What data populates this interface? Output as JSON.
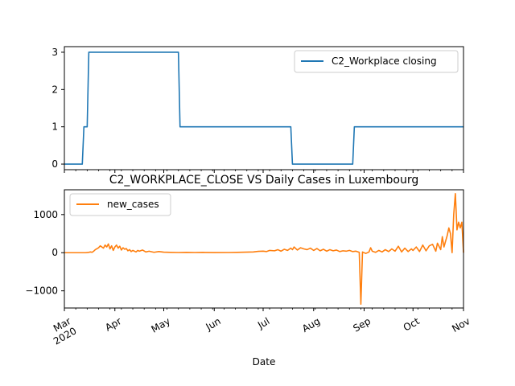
{
  "colors": {
    "series_1": "#1f77b4",
    "series_2": "#ff7f0e",
    "axes": "#000000",
    "legend_border": "#cccccc"
  },
  "chart_data": [
    {
      "type": "line",
      "title": "",
      "xlabel": "",
      "ylabel": "",
      "ylim": [
        -0.15,
        3.15
      ],
      "xlim": [
        "2020-03-01",
        "2020-11-01"
      ],
      "yticks": [
        "0",
        "1",
        "2",
        "3"
      ],
      "grid": false,
      "legend": "upper right",
      "series": [
        {
          "name": "C2_Workplace closing",
          "color": "#1f77b4",
          "points": [
            [
              "2020-03-01",
              0
            ],
            [
              "2020-03-12",
              0
            ],
            [
              "2020-03-13",
              1
            ],
            [
              "2020-03-14",
              1
            ],
            [
              "2020-03-15",
              1
            ],
            [
              "2020-03-16",
              3
            ],
            [
              "2020-05-10",
              3
            ],
            [
              "2020-05-11",
              1
            ],
            [
              "2020-07-18",
              1
            ],
            [
              "2020-07-19",
              0
            ],
            [
              "2020-08-25",
              0
            ],
            [
              "2020-08-26",
              1
            ],
            [
              "2020-11-01",
              1
            ]
          ]
        }
      ]
    },
    {
      "type": "line",
      "title": "C2_WORKPLACE_CLOSE VS Daily Cases in Luxembourg",
      "xlabel": "Date",
      "ylabel": "",
      "ylim": [
        -1450,
        1650
      ],
      "xlim": [
        "2020-03-01",
        "2020-11-01"
      ],
      "yticks": [
        "−1000",
        "0",
        "1000"
      ],
      "xticks": [
        {
          "date": "2020-03-01",
          "label": "Mar\n2020"
        },
        {
          "date": "2020-04-01",
          "label": "Apr"
        },
        {
          "date": "2020-05-01",
          "label": "May"
        },
        {
          "date": "2020-06-01",
          "label": "Jun"
        },
        {
          "date": "2020-07-01",
          "label": "Jul"
        },
        {
          "date": "2020-08-01",
          "label": "Aug"
        },
        {
          "date": "2020-09-01",
          "label": "Sep"
        },
        {
          "date": "2020-10-01",
          "label": "Oct"
        },
        {
          "date": "2020-11-01",
          "label": "Nov"
        }
      ],
      "grid": false,
      "legend": "upper left",
      "series": [
        {
          "name": "new_cases",
          "color": "#ff7f0e",
          "points": [
            [
              "2020-03-01",
              0
            ],
            [
              "2020-03-05",
              0
            ],
            [
              "2020-03-10",
              0
            ],
            [
              "2020-03-14",
              0
            ],
            [
              "2020-03-16",
              10
            ],
            [
              "2020-03-17",
              20
            ],
            [
              "2020-03-18",
              10
            ],
            [
              "2020-03-19",
              40
            ],
            [
              "2020-03-20",
              80
            ],
            [
              "2020-03-22",
              130
            ],
            [
              "2020-03-23",
              180
            ],
            [
              "2020-03-25",
              120
            ],
            [
              "2020-03-26",
              200
            ],
            [
              "2020-03-27",
              150
            ],
            [
              "2020-03-28",
              230
            ],
            [
              "2020-03-29",
              100
            ],
            [
              "2020-03-30",
              180
            ],
            [
              "2020-03-31",
              60
            ],
            [
              "2020-04-01",
              150
            ],
            [
              "2020-04-02",
              200
            ],
            [
              "2020-04-03",
              120
            ],
            [
              "2020-04-04",
              170
            ],
            [
              "2020-04-05",
              70
            ],
            [
              "2020-04-06",
              130
            ],
            [
              "2020-04-07",
              90
            ],
            [
              "2020-04-08",
              110
            ],
            [
              "2020-04-09",
              50
            ],
            [
              "2020-04-10",
              80
            ],
            [
              "2020-04-11",
              30
            ],
            [
              "2020-04-12",
              60
            ],
            [
              "2020-04-14",
              20
            ],
            [
              "2020-04-15",
              60
            ],
            [
              "2020-04-16",
              40
            ],
            [
              "2020-04-18",
              70
            ],
            [
              "2020-04-20",
              20
            ],
            [
              "2020-04-22",
              40
            ],
            [
              "2020-04-25",
              10
            ],
            [
              "2020-04-28",
              30
            ],
            [
              "2020-05-01",
              15
            ],
            [
              "2020-05-05",
              10
            ],
            [
              "2020-05-10",
              5
            ],
            [
              "2020-05-15",
              10
            ],
            [
              "2020-05-20",
              5
            ],
            [
              "2020-05-25",
              8
            ],
            [
              "2020-06-01",
              3
            ],
            [
              "2020-06-10",
              5
            ],
            [
              "2020-06-15",
              10
            ],
            [
              "2020-06-20",
              15
            ],
            [
              "2020-06-25",
              20
            ],
            [
              "2020-06-28",
              35
            ],
            [
              "2020-07-01",
              40
            ],
            [
              "2020-07-03",
              30
            ],
            [
              "2020-07-05",
              60
            ],
            [
              "2020-07-08",
              50
            ],
            [
              "2020-07-10",
              80
            ],
            [
              "2020-07-12",
              40
            ],
            [
              "2020-07-14",
              90
            ],
            [
              "2020-07-16",
              60
            ],
            [
              "2020-07-18",
              120
            ],
            [
              "2020-07-19",
              80
            ],
            [
              "2020-07-20",
              150
            ],
            [
              "2020-07-22",
              70
            ],
            [
              "2020-07-24",
              130
            ],
            [
              "2020-07-26",
              100
            ],
            [
              "2020-07-28",
              80
            ],
            [
              "2020-07-30",
              120
            ],
            [
              "2020-08-01",
              60
            ],
            [
              "2020-08-03",
              110
            ],
            [
              "2020-08-05",
              50
            ],
            [
              "2020-08-07",
              90
            ],
            [
              "2020-08-09",
              40
            ],
            [
              "2020-08-11",
              80
            ],
            [
              "2020-08-13",
              50
            ],
            [
              "2020-08-15",
              70
            ],
            [
              "2020-08-17",
              30
            ],
            [
              "2020-08-19",
              50
            ],
            [
              "2020-08-21",
              40
            ],
            [
              "2020-08-23",
              60
            ],
            [
              "2020-08-25",
              30
            ],
            [
              "2020-08-27",
              40
            ],
            [
              "2020-08-29",
              10
            ],
            [
              "2020-08-30",
              -1350
            ],
            [
              "2020-08-31",
              20
            ],
            [
              "2020-09-02",
              -20
            ],
            [
              "2020-09-04",
              20
            ],
            [
              "2020-09-05",
              130
            ],
            [
              "2020-09-06",
              40
            ],
            [
              "2020-09-08",
              10
            ],
            [
              "2020-09-10",
              60
            ],
            [
              "2020-09-12",
              20
            ],
            [
              "2020-09-14",
              80
            ],
            [
              "2020-09-16",
              30
            ],
            [
              "2020-09-18",
              100
            ],
            [
              "2020-09-20",
              40
            ],
            [
              "2020-09-22",
              170
            ],
            [
              "2020-09-24",
              20
            ],
            [
              "2020-09-26",
              120
            ],
            [
              "2020-09-28",
              30
            ],
            [
              "2020-09-30",
              100
            ],
            [
              "2020-10-01",
              60
            ],
            [
              "2020-10-03",
              150
            ],
            [
              "2020-10-05",
              30
            ],
            [
              "2020-10-07",
              200
            ],
            [
              "2020-10-09",
              50
            ],
            [
              "2020-10-11",
              180
            ],
            [
              "2020-10-13",
              220
            ],
            [
              "2020-10-15",
              40
            ],
            [
              "2020-10-16",
              250
            ],
            [
              "2020-10-18",
              80
            ],
            [
              "2020-10-19",
              420
            ],
            [
              "2020-10-20",
              150
            ],
            [
              "2020-10-21",
              300
            ],
            [
              "2020-10-22",
              450
            ],
            [
              "2020-10-23",
              650
            ],
            [
              "2020-10-24",
              500
            ],
            [
              "2020-10-25",
              0
            ],
            [
              "2020-10-26",
              1000
            ],
            [
              "2020-10-27",
              1550
            ],
            [
              "2020-10-28",
              600
            ],
            [
              "2020-10-29",
              800
            ],
            [
              "2020-10-30",
              650
            ],
            [
              "2020-10-31",
              800
            ],
            [
              "2020-11-01",
              0
            ]
          ]
        }
      ]
    }
  ]
}
